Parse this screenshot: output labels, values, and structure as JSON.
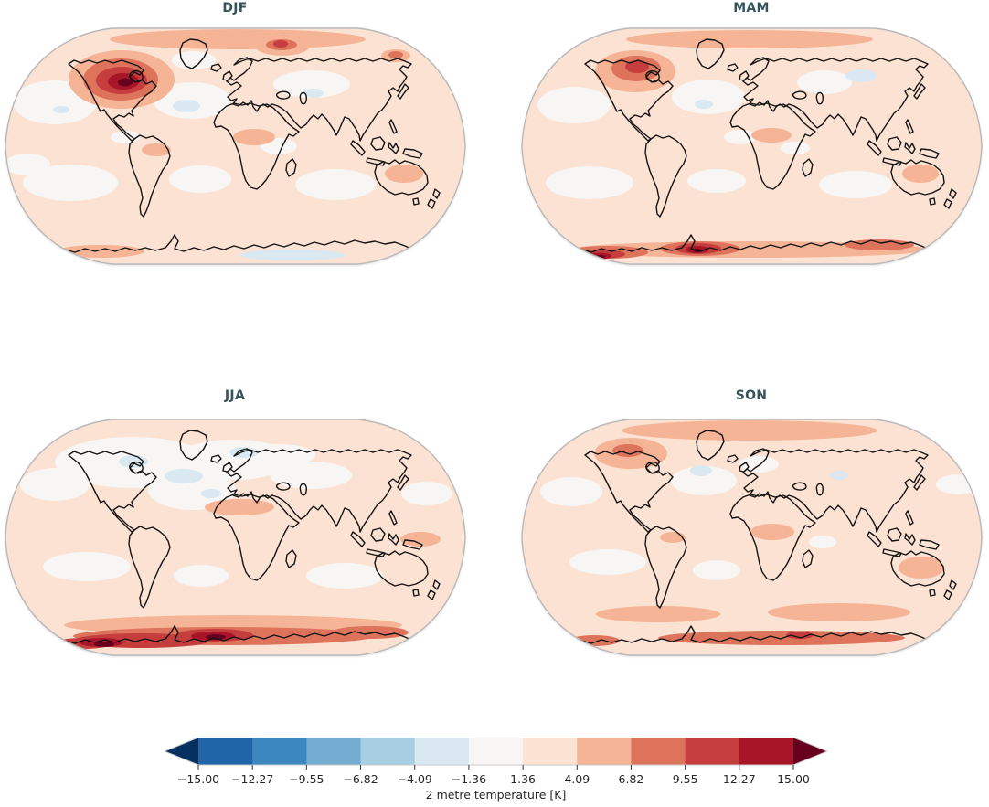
{
  "figure": {
    "background": "#ffffff",
    "title_color": "#36555a",
    "text_color": "#262626"
  },
  "chart_data": {
    "type": "heatmap",
    "subtype": "filled-contour world maps, Robinson projection, 2x2 seasonal panels",
    "colorbar": {
      "label": "2 metre temperature [K]",
      "orientation": "horizontal",
      "extend": "both",
      "tick_labels": [
        "−15.00",
        "−12.27",
        "−9.55",
        "−6.82",
        "−4.09",
        "−1.36",
        "1.36",
        "4.09",
        "6.82",
        "9.55",
        "12.27",
        "15.00"
      ],
      "tick_values": [
        -15.0,
        -12.27,
        -9.55,
        -6.82,
        -4.09,
        -1.36,
        1.36,
        4.09,
        6.82,
        9.55,
        12.27,
        15.0
      ],
      "segment_colors": [
        "#2065a8",
        "#3d87c0",
        "#73add2",
        "#a8cee3",
        "#d9e8f1",
        "#f7f6f4",
        "#fbe2d2",
        "#f5b496",
        "#de735c",
        "#c53e3d",
        "#a81529"
      ],
      "under_arrow_color": "#053061",
      "over_arrow_color": "#67001f",
      "outline_color": "#c9c9c9",
      "tick_color": "#333333"
    },
    "palette": {
      "base": "#fbe2d2",
      "w": "#f7f6f4",
      "b": "#d9e8f1",
      "s1": "#f5b496",
      "s2": "#de735c",
      "s3": "#c53e3d",
      "s4": "#a81529",
      "s5": "#67001f"
    },
    "panels": [
      {
        "id": "djf",
        "title": "DJF",
        "description": "Strong warm anomaly (>12 K) over Hudson Bay / northern Canada; warm Kara Sea; faint cool patches in N Atlantic, central Siberia and near the Ross Sea.",
        "blobs": [
          [
            55,
            82,
            46,
            24,
            "w"
          ],
          [
            205,
            80,
            42,
            20,
            "w"
          ],
          [
            336,
            62,
            42,
            15,
            "w"
          ],
          [
            207,
            36,
            24,
            10,
            "w"
          ],
          [
            72,
            170,
            52,
            20,
            "w"
          ],
          [
            214,
            166,
            34,
            15,
            "w"
          ],
          [
            362,
            172,
            44,
            17,
            "w"
          ],
          [
            300,
            130,
            20,
            9,
            "w"
          ],
          [
            132,
            120,
            16,
            7,
            "w"
          ],
          [
            25,
            150,
            25,
            12,
            "w"
          ],
          [
            199,
            86,
            15,
            7,
            "b"
          ],
          [
            338,
            72,
            11,
            5,
            "b"
          ],
          [
            62,
            90,
            9,
            4,
            "b"
          ],
          [
            315,
            249,
            58,
            6,
            "b"
          ],
          [
            255,
            13,
            140,
            11,
            "s1"
          ],
          [
            128,
            57,
            58,
            32,
            "s1"
          ],
          [
            304,
            20,
            30,
            11,
            "s1"
          ],
          [
            428,
            31,
            16,
            7,
            "s1"
          ],
          [
            273,
            120,
            23,
            9,
            "s1"
          ],
          [
            166,
            134,
            16,
            7,
            "s1"
          ],
          [
            437,
            160,
            21,
            10,
            "s1"
          ],
          [
            105,
            245,
            48,
            7,
            "s1"
          ],
          [
            127,
            57,
            41,
            23,
            "s2"
          ],
          [
            303,
            19,
            17,
            6,
            "s2"
          ],
          [
            428,
            30,
            8,
            4,
            "s2"
          ],
          [
            128,
            58,
            28,
            15,
            "s3"
          ],
          [
            302,
            18,
            8,
            4,
            "s3"
          ],
          [
            130,
            59,
            17,
            9,
            "s4"
          ],
          [
            132,
            60,
            8,
            4.5,
            "s5"
          ]
        ]
      },
      {
        "id": "mam",
        "title": "MAM",
        "description": "Moderate warm anomaly over the Canadian Arctic; strong warm anomalies along the West Antarctic coastline; faint cool patch over western Siberia.",
        "blobs": [
          [
            58,
            85,
            40,
            20,
            "w"
          ],
          [
            205,
            76,
            40,
            19,
            "w"
          ],
          [
            332,
            60,
            30,
            13,
            "w"
          ],
          [
            75,
            170,
            48,
            18,
            "w"
          ],
          [
            214,
            168,
            32,
            13,
            "w"
          ],
          [
            366,
            172,
            40,
            15,
            "w"
          ],
          [
            240,
            120,
            18,
            8,
            "w"
          ],
          [
            300,
            132,
            16,
            7,
            "w"
          ],
          [
            372,
            53,
            17,
            7,
            "b"
          ],
          [
            200,
            84,
            10,
            5,
            "b"
          ],
          [
            250,
            13,
            135,
            10,
            "s1"
          ],
          [
            125,
            48,
            44,
            23,
            "s1"
          ],
          [
            274,
            118,
            22,
            8,
            "s1"
          ],
          [
            437,
            160,
            20,
            10,
            "s1"
          ],
          [
            250,
            243,
            195,
            9,
            "s1"
          ],
          [
            126,
            45,
            27,
            14,
            "s2"
          ],
          [
            95,
            246,
            44,
            7,
            "s2"
          ],
          [
            196,
            242,
            44,
            8,
            "s2"
          ],
          [
            392,
            238,
            38,
            6,
            "s2"
          ],
          [
            127,
            43,
            13,
            7,
            "s3"
          ],
          [
            89,
            248,
            25,
            5,
            "s3"
          ],
          [
            194,
            242,
            25,
            6,
            "s3"
          ],
          [
            86,
            250,
            13,
            3.5,
            "s4"
          ],
          [
            193,
            243,
            13,
            4,
            "s4"
          ],
          [
            87,
            251,
            5,
            2,
            "s5"
          ],
          [
            193,
            244,
            5,
            2,
            "s5"
          ]
        ]
      },
      {
        "id": "jja",
        "title": "JJA",
        "description": "Strongest warm band (up to ~15 K) along the Antarctic coastline with two dark cores; near-neutral/slightly cool northern oceans, Hudson Bay and Scandinavia.",
        "blobs": [
          [
            140,
            48,
            85,
            28,
            "w"
          ],
          [
            250,
            45,
            65,
            22,
            "w"
          ],
          [
            205,
            78,
            48,
            22,
            "w"
          ],
          [
            55,
            72,
            38,
            18,
            "w"
          ],
          [
            335,
            62,
            45,
            15,
            "w"
          ],
          [
            90,
            162,
            48,
            16,
            "w"
          ],
          [
            215,
            172,
            30,
            12,
            "w"
          ],
          [
            372,
            172,
            42,
            14,
            "w"
          ],
          [
            462,
            82,
            28,
            13,
            "w"
          ],
          [
            300,
            40,
            40,
            12,
            "w"
          ],
          [
            196,
            63,
            21,
            8,
            "b"
          ],
          [
            141,
            47,
            16,
            7,
            "b"
          ],
          [
            262,
            37,
            16,
            6,
            "b"
          ],
          [
            226,
            82,
            11,
            5,
            "b"
          ],
          [
            257,
            97,
            38,
            9,
            "s1"
          ],
          [
            455,
            132,
            22,
            8,
            "s1"
          ],
          [
            250,
            226,
            185,
            11,
            "s1"
          ],
          [
            240,
            238,
            165,
            10,
            "s2"
          ],
          [
            400,
            234,
            42,
            7,
            "s2"
          ],
          [
            150,
            243,
            75,
            8,
            "s3"
          ],
          [
            230,
            237,
            42,
            7,
            "s3"
          ],
          [
            86,
            246,
            32,
            6,
            "s3"
          ],
          [
            106,
            245,
            24,
            5,
            "s4"
          ],
          [
            228,
            238,
            24,
            5,
            "s4"
          ],
          [
            109,
            247,
            11,
            3,
            "s5"
          ],
          [
            231,
            239,
            11,
            3,
            "s5"
          ]
        ]
      },
      {
        "id": "son",
        "title": "SON",
        "description": "Widespread mild warmth; warm Arctic rim, Australia and Southern Ocean; warm band with a moderate core along the Antarctic coast; small cool patch south of Greenland.",
        "blobs": [
          [
            200,
            68,
            36,
            16,
            "w"
          ],
          [
            55,
            80,
            34,
            16,
            "w"
          ],
          [
            478,
            72,
            24,
            11,
            "w"
          ],
          [
            95,
            157,
            42,
            14,
            "w"
          ],
          [
            214,
            166,
            26,
            11,
            "w"
          ],
          [
            260,
            50,
            22,
            9,
            "w"
          ],
          [
            330,
            135,
            15,
            7,
            "w"
          ],
          [
            197,
            57,
            12,
            6,
            "b"
          ],
          [
            348,
            62,
            10,
            5,
            "b"
          ],
          [
            250,
            13,
            140,
            11,
            "s1"
          ],
          [
            120,
            38,
            40,
            17,
            "s1"
          ],
          [
            438,
            163,
            25,
            12,
            "s1"
          ],
          [
            150,
            214,
            68,
            9,
            "s1"
          ],
          [
            348,
            212,
            78,
            10,
            "s1"
          ],
          [
            275,
            124,
            24,
            9,
            "s1"
          ],
          [
            166,
            130,
            14,
            6,
            "s1"
          ],
          [
            117,
            35,
            17,
            7,
            "s2"
          ],
          [
            285,
            240,
            135,
            8,
            "s2"
          ],
          [
            80,
            243,
            28,
            6,
            "s2"
          ],
          [
            305,
            237,
            15,
            4,
            "s3"
          ]
        ]
      }
    ]
  }
}
